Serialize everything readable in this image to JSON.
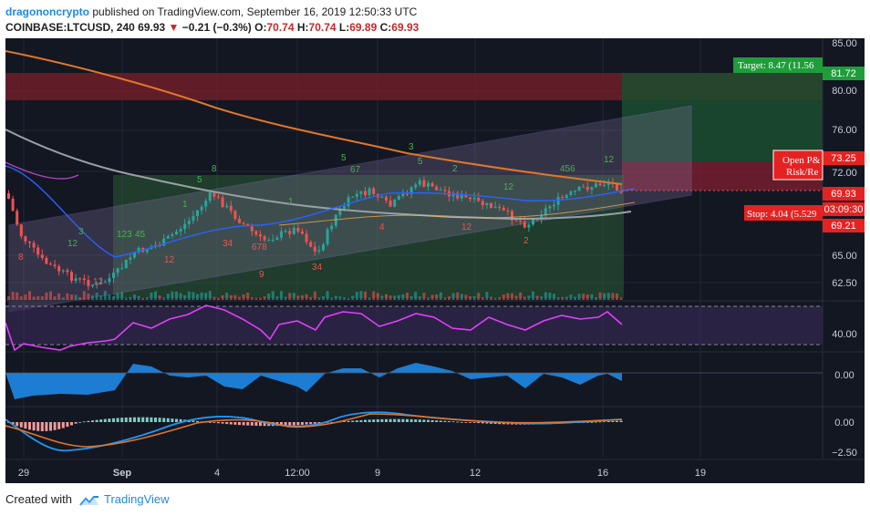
{
  "header": {
    "author": "dragononcrypto",
    "published_text": "published on TradingView.com, September 16, 2019 12:50:33 UTC",
    "symbol": "COINBASE:LTCUSD, 240",
    "last": "69.93",
    "down_arrow": "▼",
    "change": "−0.21 (−0.3%)",
    "o_label": "O:",
    "o": "70.74",
    "h_label": "H:",
    "h": "70.74",
    "l_label": "L:",
    "l": "69.89",
    "c_label": "C:",
    "c": "69.93"
  },
  "axis": {
    "price_ticks": [
      "85.00",
      "80.00",
      "76.00",
      "72.00",
      "65.00",
      "62.50"
    ],
    "rsi_ticks": [
      "40.00"
    ],
    "osc_ticks": [
      "0.00"
    ],
    "macd_ticks": [
      "0.00",
      "−2.50"
    ],
    "time_labels": [
      "29",
      "Sep",
      "4",
      "12:00",
      "9",
      "12",
      "16",
      "19"
    ]
  },
  "price_badges": {
    "b1": "81.72",
    "b2": "73.25",
    "b3": "69.93",
    "b4": "03:09:30",
    "b5": "69.21"
  },
  "labels": {
    "target": "Target: 8.47 (11.56",
    "stop": "Stop: 4.04 (5.529",
    "open_pl": "Open P&",
    "risk_reward": "Risk/Re"
  },
  "colors": {
    "bg": "#131722",
    "up": "#26a69a",
    "down": "#ef5350",
    "ma_orange": "#e0762a",
    "ma_gray": "#9aa0a6",
    "ma_blue": "#2962ff",
    "rsi": "#e040fb",
    "osc": "#1e88e5",
    "target_green": "#1f9d3a",
    "stop_red": "#e52222"
  },
  "footer": {
    "created_with": "Created with",
    "brand": "TradingView"
  }
}
